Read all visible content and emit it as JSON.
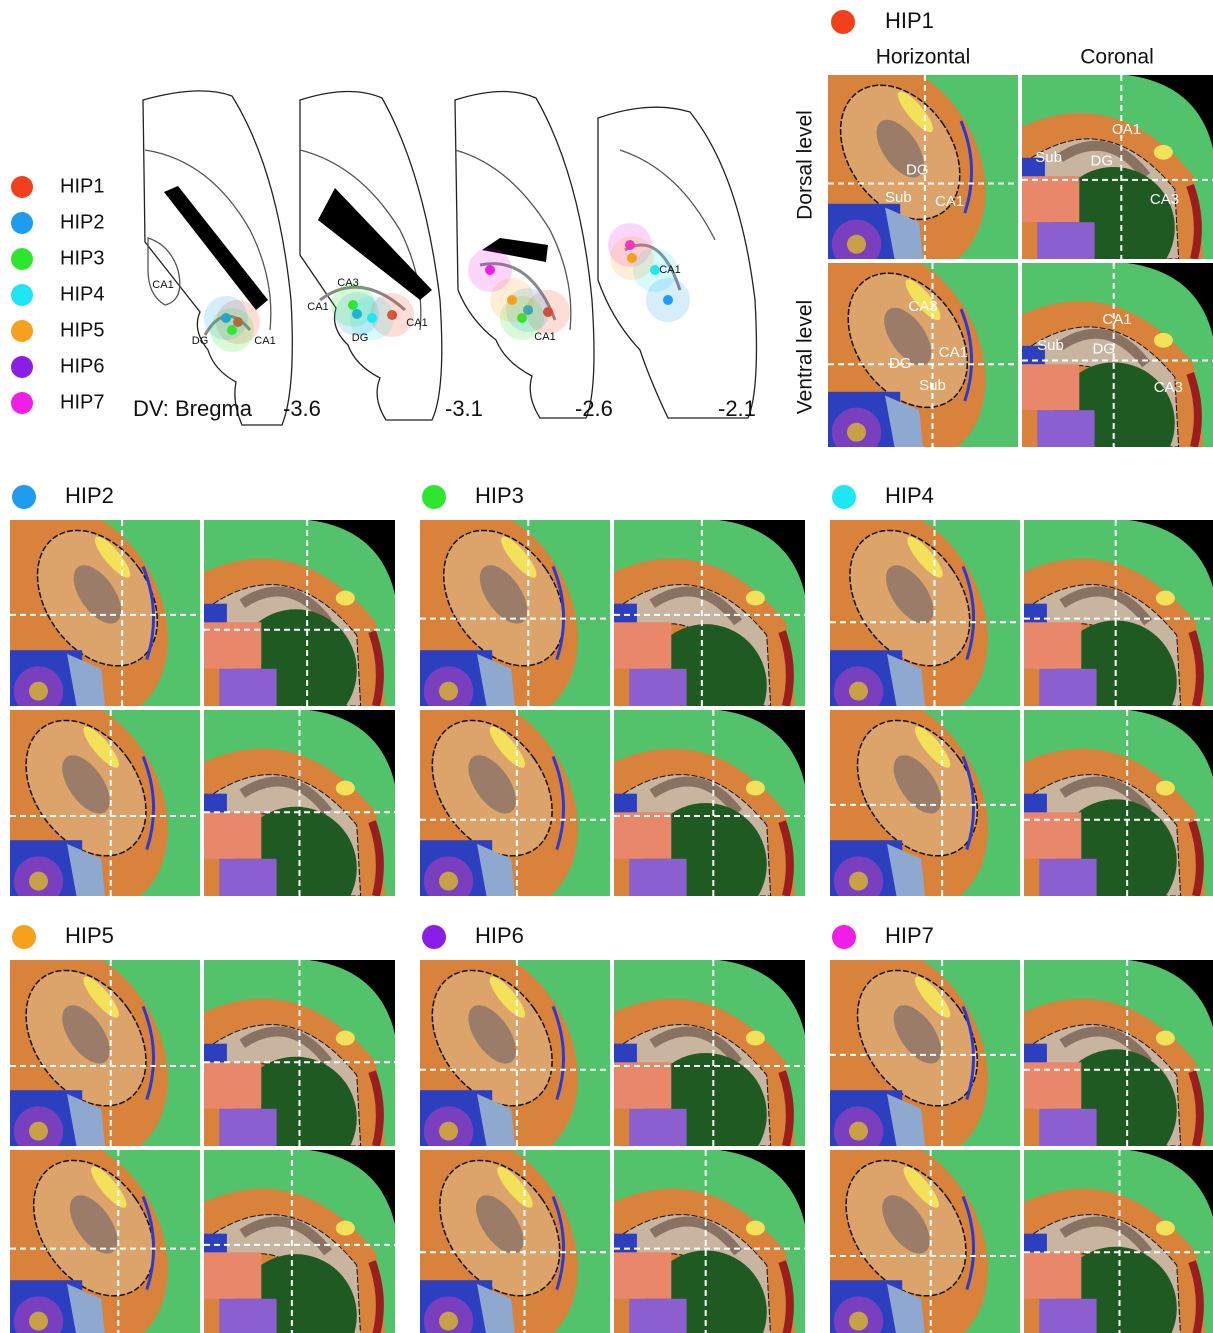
{
  "legend": {
    "items": [
      {
        "label": "HIP1",
        "color": "#f2401c"
      },
      {
        "label": "HIP2",
        "color": "#1e9cf0"
      },
      {
        "label": "HIP3",
        "color": "#2ee62e"
      },
      {
        "label": "HIP4",
        "color": "#1ee6f5"
      },
      {
        "label": "HIP5",
        "color": "#f7a01e"
      },
      {
        "label": "HIP6",
        "color": "#8a1ee6"
      },
      {
        "label": "HIP7",
        "color": "#f01ee6"
      }
    ]
  },
  "sections": {
    "axis_label": "DV: Bregma",
    "levels": [
      "-3.6",
      "-3.1",
      "-2.6",
      "-2.1"
    ],
    "region_labels": [
      [
        "CA1",
        "DG",
        "CA1"
      ],
      [
        "CA3",
        "CA1",
        "DG",
        "CA1"
      ],
      [
        "CA1"
      ],
      [
        "CA1"
      ]
    ]
  },
  "panels": [
    {
      "title": "HIP1",
      "column_titles": [
        "Horizontal",
        "Coronal"
      ],
      "row_titles": [
        "Dorsal level",
        "Ventral level"
      ],
      "region_labels": [
        [
          "DG",
          "Sub",
          "CA1"
        ],
        [
          "CA1",
          "Sub",
          "DG",
          "CA3"
        ],
        [
          "CA3",
          "DG",
          "CA1",
          "Sub"
        ],
        [
          "CA1",
          "Sub",
          "DG",
          "CA3"
        ]
      ]
    },
    {
      "title": "HIP2"
    },
    {
      "title": "HIP3"
    },
    {
      "title": "HIP4"
    },
    {
      "title": "HIP5"
    },
    {
      "title": "HIP6"
    },
    {
      "title": "HIP7"
    }
  ]
}
